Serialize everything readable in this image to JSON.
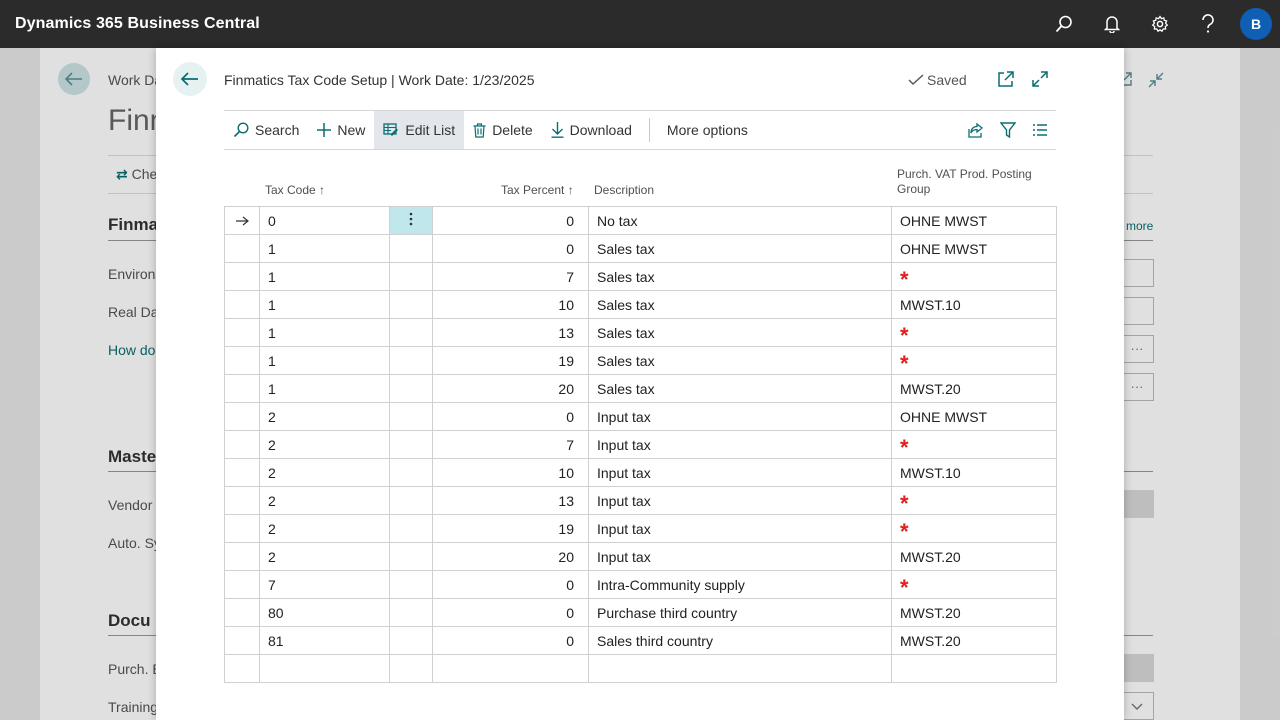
{
  "app": {
    "title": "Dynamics 365 Business Central",
    "avatar_initial": "B",
    "icons": [
      "search-icon",
      "bell-icon",
      "gear-icon",
      "help-icon"
    ]
  },
  "background_page": {
    "breadcrumb": "Work Da",
    "title": "Finn",
    "check_action": "Che",
    "section1": "Finma",
    "item1": "Environ",
    "item2": "Real Dat",
    "link": "How do",
    "section2": "Maste",
    "item3": "Vendor",
    "item4": "Auto. Sy",
    "section3": "Docu",
    "item5": "Purch. B",
    "item6": "Training",
    "more_link": "more",
    "ellipsis": "···"
  },
  "modal": {
    "title": "Finmatics Tax Code Setup | Work Date: 1/23/2025",
    "saved_label": "Saved",
    "actions": {
      "search": "Search",
      "new": "New",
      "edit_list": "Edit List",
      "delete": "Delete",
      "download": "Download",
      "more_options": "More options"
    },
    "columns": {
      "tax_code": "Tax Code",
      "tax_percent": "Tax Percent",
      "description": "Description",
      "purch_vat_line1": "Purch. VAT Prod. Posting",
      "purch_vat_line2": "Group"
    },
    "rows": [
      {
        "code": "0",
        "percent": "0",
        "description": "No tax",
        "group": "OHNE MWST"
      },
      {
        "code": "1",
        "percent": "0",
        "description": "Sales tax",
        "group": "OHNE MWST"
      },
      {
        "code": "1",
        "percent": "7",
        "description": "Sales tax",
        "group": "*"
      },
      {
        "code": "1",
        "percent": "10",
        "description": "Sales tax",
        "group": "MWST.10"
      },
      {
        "code": "1",
        "percent": "13",
        "description": "Sales tax",
        "group": "*"
      },
      {
        "code": "1",
        "percent": "19",
        "description": "Sales tax",
        "group": "*"
      },
      {
        "code": "1",
        "percent": "20",
        "description": "Sales tax",
        "group": "MWST.20"
      },
      {
        "code": "2",
        "percent": "0",
        "description": "Input tax",
        "group": "OHNE MWST"
      },
      {
        "code": "2",
        "percent": "7",
        "description": "Input tax",
        "group": "*"
      },
      {
        "code": "2",
        "percent": "10",
        "description": "Input tax",
        "group": "MWST.10"
      },
      {
        "code": "2",
        "percent": "13",
        "description": "Input tax",
        "group": "*"
      },
      {
        "code": "2",
        "percent": "19",
        "description": "Input tax",
        "group": "*"
      },
      {
        "code": "2",
        "percent": "20",
        "description": "Input tax",
        "group": "MWST.20"
      },
      {
        "code": "7",
        "percent": "0",
        "description": "Intra-Community supply",
        "group": "*"
      },
      {
        "code": "80",
        "percent": "0",
        "description": "Purchase third country",
        "group": "MWST.20"
      },
      {
        "code": "81",
        "percent": "0",
        "description": "Sales third country",
        "group": "MWST.20"
      }
    ],
    "colors": {
      "accent": "#0a6e71",
      "required": "#e02020",
      "selected_cell": "#bfe7ec"
    }
  }
}
